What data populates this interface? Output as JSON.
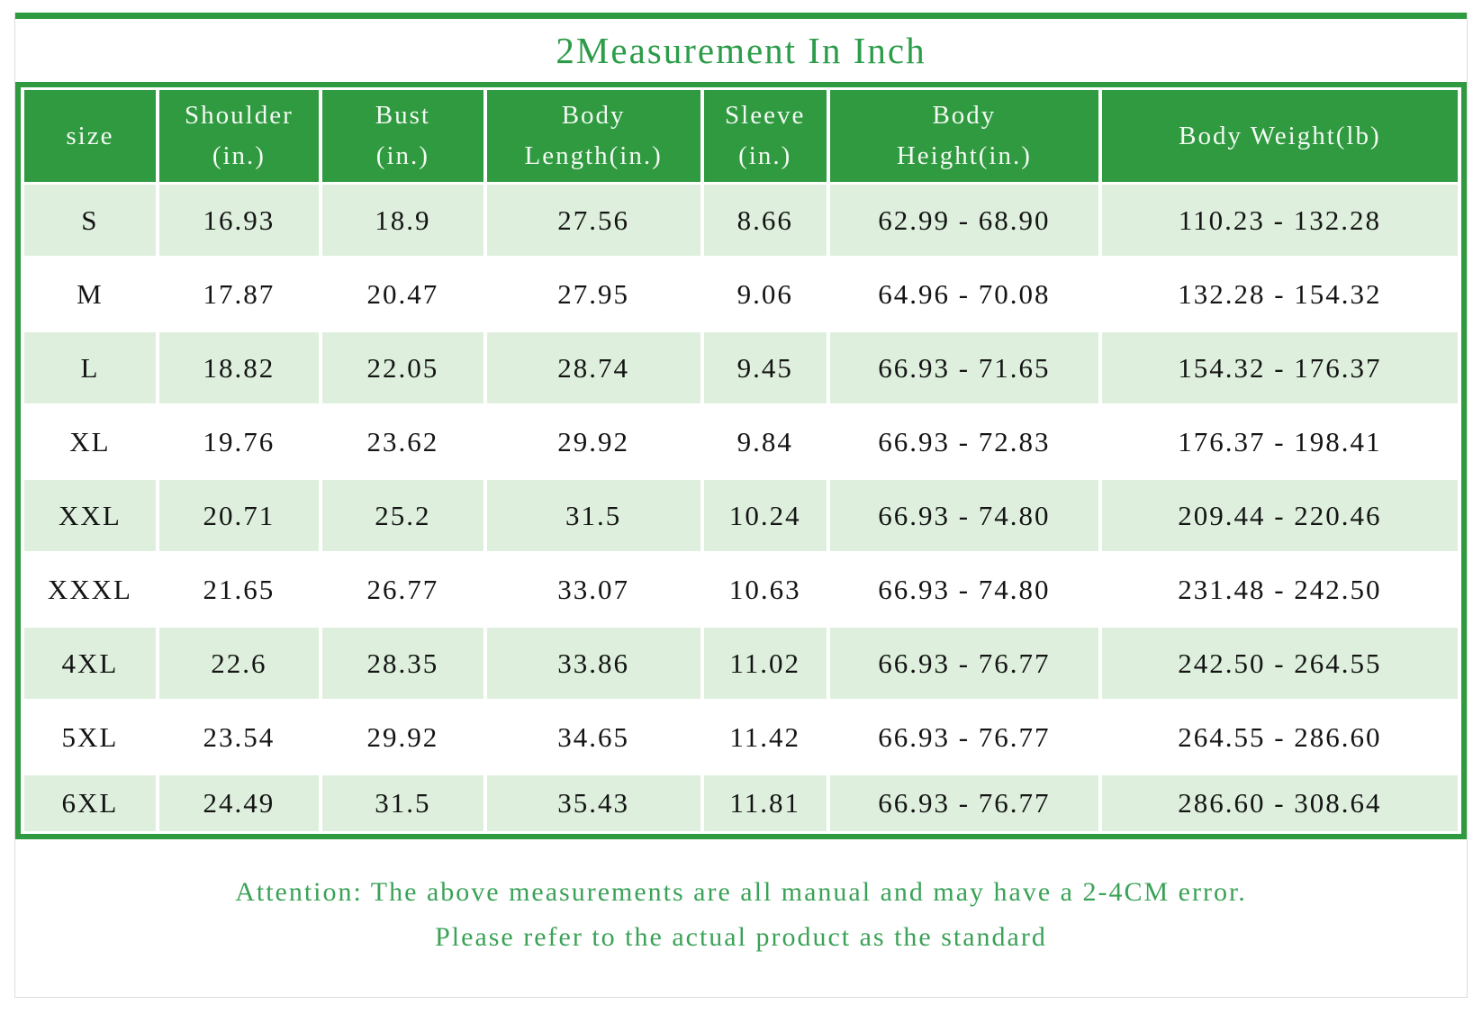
{
  "chart_data": {
    "type": "table",
    "title": "2Measurement In Inch",
    "columns": [
      "size",
      "Shoulder\n(in.)",
      "Bust\n(in.)",
      "Body\nLength(in.)",
      "Sleeve\n(in.)",
      "Body\nHeight(in.)",
      "Body Weight(lb)"
    ],
    "rows": [
      [
        "S",
        "16.93",
        "18.9",
        "27.56",
        "8.66",
        "62.99 - 68.90",
        "110.23 - 132.28"
      ],
      [
        "M",
        "17.87",
        "20.47",
        "27.95",
        "9.06",
        "64.96 - 70.08",
        "132.28 - 154.32"
      ],
      [
        "L",
        "18.82",
        "22.05",
        "28.74",
        "9.45",
        "66.93 - 71.65",
        "154.32 - 176.37"
      ],
      [
        "XL",
        "19.76",
        "23.62",
        "29.92",
        "9.84",
        "66.93 - 72.83",
        "176.37 - 198.41"
      ],
      [
        "XXL",
        "20.71",
        "25.2",
        "31.5",
        "10.24",
        "66.93 - 74.80",
        "209.44 - 220.46"
      ],
      [
        "XXXL",
        "21.65",
        "26.77",
        "33.07",
        "10.63",
        "66.93 - 74.80",
        "231.48 - 242.50"
      ],
      [
        "4XL",
        "22.6",
        "28.35",
        "33.86",
        "11.02",
        "66.93 - 76.77",
        "242.50 - 264.55"
      ],
      [
        "5XL",
        "23.54",
        "29.92",
        "34.65",
        "11.42",
        "66.93 - 76.77",
        "264.55 - 286.60"
      ],
      [
        "6XL",
        "24.49",
        "31.5",
        "35.43",
        "11.81",
        "66.93 - 76.77",
        "286.60 - 308.64"
      ]
    ],
    "layout": {
      "legend": "none",
      "grid": "alternating-row-shading",
      "row_shading_order": "first-row-shaded"
    }
  },
  "attention": {
    "line1": "Attention: The above measurements are all manual and may have a 2-4CM error.",
    "line2": "Please refer to the actual product as the standard"
  },
  "colors": {
    "accent_green": "#2f9a3f",
    "row_light_green": "#def0dd",
    "title_green": "#2c9c4a",
    "attention_green": "#3aa257",
    "header_text": "#f4faf4",
    "cell_text": "#141414",
    "frame_border": "#dcdcdc"
  }
}
